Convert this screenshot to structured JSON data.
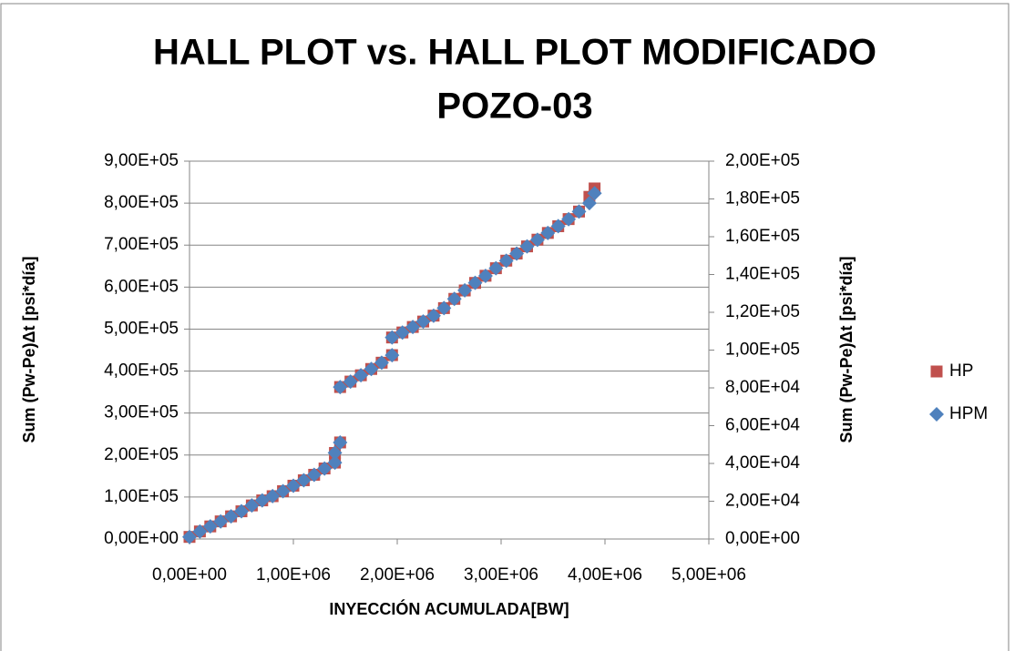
{
  "chart_data": {
    "type": "scatter",
    "title": "HALL PLOT vs. HALL PLOT MODIFICADO",
    "subtitle": "POZO-03",
    "x_label": "INYECCIÓN ACUMULADA[BW]",
    "y_label": "Sum (Pw-Pe)Δt [psi*día]",
    "y2_label": "Sum (Pw-Pe)Δt [psi*día]",
    "x": [
      0,
      100000,
      200000,
      300000,
      400000,
      500000,
      600000,
      700000,
      800000,
      900000,
      1000000,
      1100000,
      1200000,
      1300000,
      1400000,
      1400000,
      1450000,
      1450000,
      1550000,
      1650000,
      1750000,
      1850000,
      1950000,
      1950000,
      2050000,
      2150000,
      2250000,
      2350000,
      2450000,
      2550000,
      2650000,
      2750000,
      2850000,
      2950000,
      3050000,
      3150000,
      3250000,
      3350000,
      3450000,
      3550000,
      3650000,
      3750000,
      3850000,
      3900000
    ],
    "series": [
      {
        "name": "HP",
        "color": "#c0504d",
        "marker": "square",
        "values": [
          5000,
          18000,
          30000,
          42000,
          54000,
          66000,
          80000,
          92000,
          102000,
          114000,
          127000,
          140000,
          153000,
          168000,
          182000,
          205000,
          230000,
          362000,
          375000,
          390000,
          405000,
          420000,
          438000,
          480000,
          492000,
          505000,
          518000,
          532000,
          550000,
          572000,
          592000,
          610000,
          627000,
          645000,
          663000,
          680000,
          697000,
          713000,
          729000,
          745000,
          762000,
          780000,
          815000,
          835000
        ]
      },
      {
        "name": "HPM",
        "color": "#4f81bd",
        "marker": "diamond",
        "axis": "y2",
        "values": [
          1100,
          4000,
          6700,
          9300,
          12000,
          14700,
          17800,
          20400,
          22700,
          25300,
          28200,
          31100,
          34000,
          37300,
          40400,
          45600,
          51100,
          80400,
          83300,
          86700,
          90000,
          93300,
          97300,
          106700,
          109300,
          112200,
          115100,
          118200,
          122200,
          127100,
          131600,
          135600,
          139300,
          143300,
          147300,
          151100,
          154900,
          158400,
          162000,
          165600,
          169300,
          173300,
          177800,
          183000
        ]
      }
    ],
    "xlim": [
      0,
      5000000
    ],
    "xticks": [
      {
        "value": 0,
        "label": "0,00E+00"
      },
      {
        "value": 1000000,
        "label": "1,00E+06"
      },
      {
        "value": 2000000,
        "label": "2,00E+06"
      },
      {
        "value": 3000000,
        "label": "3,00E+06"
      },
      {
        "value": 4000000,
        "label": "4,00E+06"
      },
      {
        "value": 5000000,
        "label": "5,00E+06"
      }
    ],
    "ylim": [
      0,
      900000
    ],
    "yticks": [
      {
        "value": 0,
        "label": "0,00E+00"
      },
      {
        "value": 100000,
        "label": "1,00E+05"
      },
      {
        "value": 200000,
        "label": "2,00E+05"
      },
      {
        "value": 300000,
        "label": "3,00E+05"
      },
      {
        "value": 400000,
        "label": "4,00E+05"
      },
      {
        "value": 500000,
        "label": "5,00E+05"
      },
      {
        "value": 600000,
        "label": "6,00E+05"
      },
      {
        "value": 700000,
        "label": "7,00E+05"
      },
      {
        "value": 800000,
        "label": "8,00E+05"
      },
      {
        "value": 900000,
        "label": "9,00E+05"
      }
    ],
    "y2lim": [
      0,
      200000
    ],
    "y2ticks": [
      {
        "value": 0,
        "label": "0,00E+00"
      },
      {
        "value": 20000,
        "label": "2,00E+04"
      },
      {
        "value": 40000,
        "label": "4,00E+04"
      },
      {
        "value": 60000,
        "label": "6,00E+04"
      },
      {
        "value": 80000,
        "label": "8,00E+04"
      },
      {
        "value": 100000,
        "label": "1,00E+05"
      },
      {
        "value": 120000,
        "label": "1,20E+05"
      },
      {
        "value": 140000,
        "label": "1,40E+05"
      },
      {
        "value": 160000,
        "label": "1,60E+05"
      },
      {
        "value": 180000,
        "label": "1,80E+05"
      },
      {
        "value": 200000,
        "label": "2,00E+05"
      }
    ],
    "grid": true,
    "legend": "right"
  }
}
